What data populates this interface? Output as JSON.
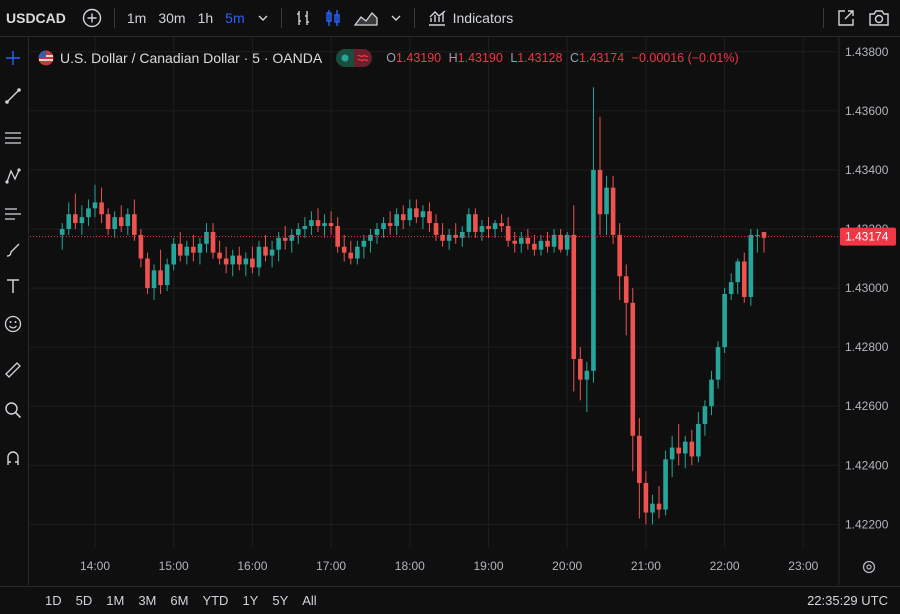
{
  "toolbar": {
    "symbol": "USDCAD",
    "intervals": [
      "1m",
      "30m",
      "1h",
      "5m"
    ],
    "active_interval": "5m",
    "indicators_label": "Indicators",
    "icons": [
      "plus-circle-icon",
      "chevron-down-icon",
      "bar-style-icon",
      "candle-style-icon",
      "area-style-icon",
      "indicators-icon",
      "fullscreen-icon",
      "camera-icon"
    ]
  },
  "legend": {
    "title": "U.S. Dollar / Canadian Dollar · 5 · OANDA",
    "open_label": "O",
    "open": "1.43190",
    "high_label": "H",
    "high": "1.43190",
    "low_label": "L",
    "low": "1.43128",
    "close_label": "C",
    "close": "1.43174",
    "change": "−0.00016 (−0.01%)"
  },
  "price_axis": {
    "ticks": [
      "1.43800",
      "1.43600",
      "1.43400",
      "1.43200",
      "1.43000",
      "1.42800",
      "1.42600",
      "1.42400",
      "1.42200"
    ],
    "last_price": "1.43174"
  },
  "time_axis": {
    "ticks": [
      "14:00",
      "15:00",
      "16:00",
      "17:00",
      "18:00",
      "19:00",
      "20:00",
      "21:00",
      "22:00",
      "23:00"
    ]
  },
  "bottom": {
    "ranges": [
      "1D",
      "5D",
      "1M",
      "3M",
      "6M",
      "YTD",
      "1Y",
      "5Y",
      "All"
    ],
    "clock": "22:35:29 UTC"
  },
  "colors": {
    "up": "#26a69a",
    "down": "#ef5350",
    "last_price_bg": "#f23645",
    "background": "#0f0f0f"
  },
  "chart_data": {
    "type": "candlestick",
    "y_range": [
      1.4212,
      1.4385
    ],
    "interval_minutes": 5,
    "candles": [
      {
        "t": "13:35",
        "o": 1.4318,
        "h": 1.4322,
        "l": 1.4313,
        "c": 1.432
      },
      {
        "t": "13:40",
        "o": 1.432,
        "h": 1.4329,
        "l": 1.4318,
        "c": 1.4325
      },
      {
        "t": "13:45",
        "o": 1.4325,
        "h": 1.4332,
        "l": 1.432,
        "c": 1.4322
      },
      {
        "t": "13:50",
        "o": 1.4322,
        "h": 1.4328,
        "l": 1.4318,
        "c": 1.4324
      },
      {
        "t": "13:55",
        "o": 1.4324,
        "h": 1.433,
        "l": 1.4321,
        "c": 1.4327
      },
      {
        "t": "14:00",
        "o": 1.4327,
        "h": 1.4335,
        "l": 1.4324,
        "c": 1.4329
      },
      {
        "t": "14:05",
        "o": 1.4329,
        "h": 1.4334,
        "l": 1.4322,
        "c": 1.4325
      },
      {
        "t": "14:10",
        "o": 1.4325,
        "h": 1.4327,
        "l": 1.4318,
        "c": 1.432
      },
      {
        "t": "14:15",
        "o": 1.432,
        "h": 1.4326,
        "l": 1.4317,
        "c": 1.4324
      },
      {
        "t": "14:20",
        "o": 1.4324,
        "h": 1.4328,
        "l": 1.4319,
        "c": 1.4321
      },
      {
        "t": "14:25",
        "o": 1.4321,
        "h": 1.4327,
        "l": 1.4318,
        "c": 1.4325
      },
      {
        "t": "14:30",
        "o": 1.4325,
        "h": 1.433,
        "l": 1.4316,
        "c": 1.4318
      },
      {
        "t": "14:35",
        "o": 1.4318,
        "h": 1.432,
        "l": 1.4307,
        "c": 1.431
      },
      {
        "t": "14:40",
        "o": 1.431,
        "h": 1.4312,
        "l": 1.4298,
        "c": 1.43
      },
      {
        "t": "14:45",
        "o": 1.43,
        "h": 1.4308,
        "l": 1.4296,
        "c": 1.4306
      },
      {
        "t": "14:50",
        "o": 1.4306,
        "h": 1.4313,
        "l": 1.4298,
        "c": 1.4301
      },
      {
        "t": "14:55",
        "o": 1.4301,
        "h": 1.431,
        "l": 1.4299,
        "c": 1.4308
      },
      {
        "t": "15:00",
        "o": 1.4308,
        "h": 1.4317,
        "l": 1.4306,
        "c": 1.4315
      },
      {
        "t": "15:05",
        "o": 1.4315,
        "h": 1.4319,
        "l": 1.4309,
        "c": 1.4311
      },
      {
        "t": "15:10",
        "o": 1.4311,
        "h": 1.4316,
        "l": 1.4308,
        "c": 1.4314
      },
      {
        "t": "15:15",
        "o": 1.4314,
        "h": 1.4318,
        "l": 1.4309,
        "c": 1.4312
      },
      {
        "t": "15:20",
        "o": 1.4312,
        "h": 1.4317,
        "l": 1.4308,
        "c": 1.4315
      },
      {
        "t": "15:25",
        "o": 1.4315,
        "h": 1.4322,
        "l": 1.4312,
        "c": 1.4319
      },
      {
        "t": "15:30",
        "o": 1.4319,
        "h": 1.4322,
        "l": 1.431,
        "c": 1.4312
      },
      {
        "t": "15:35",
        "o": 1.4312,
        "h": 1.4316,
        "l": 1.4308,
        "c": 1.431
      },
      {
        "t": "15:40",
        "o": 1.431,
        "h": 1.4314,
        "l": 1.4305,
        "c": 1.4308
      },
      {
        "t": "15:45",
        "o": 1.4308,
        "h": 1.4313,
        "l": 1.4304,
        "c": 1.4311
      },
      {
        "t": "15:50",
        "o": 1.4311,
        "h": 1.4314,
        "l": 1.4306,
        "c": 1.4308
      },
      {
        "t": "15:55",
        "o": 1.4308,
        "h": 1.4312,
        "l": 1.4304,
        "c": 1.431
      },
      {
        "t": "16:00",
        "o": 1.431,
        "h": 1.4314,
        "l": 1.4305,
        "c": 1.4307
      },
      {
        "t": "16:05",
        "o": 1.4307,
        "h": 1.4316,
        "l": 1.4304,
        "c": 1.4314
      },
      {
        "t": "16:10",
        "o": 1.4314,
        "h": 1.4318,
        "l": 1.4309,
        "c": 1.4311
      },
      {
        "t": "16:15",
        "o": 1.4311,
        "h": 1.4316,
        "l": 1.4307,
        "c": 1.4313
      },
      {
        "t": "16:20",
        "o": 1.4313,
        "h": 1.4319,
        "l": 1.4309,
        "c": 1.4317
      },
      {
        "t": "16:25",
        "o": 1.4317,
        "h": 1.4321,
        "l": 1.4313,
        "c": 1.4316
      },
      {
        "t": "16:30",
        "o": 1.4316,
        "h": 1.432,
        "l": 1.4312,
        "c": 1.4318
      },
      {
        "t": "16:35",
        "o": 1.4318,
        "h": 1.4322,
        "l": 1.4315,
        "c": 1.432
      },
      {
        "t": "16:40",
        "o": 1.432,
        "h": 1.4324,
        "l": 1.4317,
        "c": 1.4321
      },
      {
        "t": "16:45",
        "o": 1.4321,
        "h": 1.4326,
        "l": 1.4318,
        "c": 1.4323
      },
      {
        "t": "16:50",
        "o": 1.4323,
        "h": 1.4327,
        "l": 1.4319,
        "c": 1.4321
      },
      {
        "t": "16:55",
        "o": 1.4321,
        "h": 1.4325,
        "l": 1.4317,
        "c": 1.4322
      },
      {
        "t": "17:00",
        "o": 1.4322,
        "h": 1.4326,
        "l": 1.4318,
        "c": 1.4321
      },
      {
        "t": "17:05",
        "o": 1.4321,
        "h": 1.4324,
        "l": 1.4312,
        "c": 1.4314
      },
      {
        "t": "17:10",
        "o": 1.4314,
        "h": 1.4318,
        "l": 1.4309,
        "c": 1.4312
      },
      {
        "t": "17:15",
        "o": 1.4312,
        "h": 1.4316,
        "l": 1.4308,
        "c": 1.431
      },
      {
        "t": "17:20",
        "o": 1.431,
        "h": 1.4316,
        "l": 1.4308,
        "c": 1.4314
      },
      {
        "t": "17:25",
        "o": 1.4314,
        "h": 1.4318,
        "l": 1.431,
        "c": 1.4316
      },
      {
        "t": "17:30",
        "o": 1.4316,
        "h": 1.432,
        "l": 1.4312,
        "c": 1.4318
      },
      {
        "t": "17:35",
        "o": 1.4318,
        "h": 1.4322,
        "l": 1.4315,
        "c": 1.432
      },
      {
        "t": "17:40",
        "o": 1.432,
        "h": 1.4324,
        "l": 1.4317,
        "c": 1.4322
      },
      {
        "t": "17:45",
        "o": 1.4322,
        "h": 1.4326,
        "l": 1.4318,
        "c": 1.4321
      },
      {
        "t": "17:50",
        "o": 1.4321,
        "h": 1.4327,
        "l": 1.4318,
        "c": 1.4325
      },
      {
        "t": "17:55",
        "o": 1.4325,
        "h": 1.4328,
        "l": 1.432,
        "c": 1.4323
      },
      {
        "t": "18:00",
        "o": 1.4323,
        "h": 1.433,
        "l": 1.4321,
        "c": 1.4327
      },
      {
        "t": "18:05",
        "o": 1.4327,
        "h": 1.433,
        "l": 1.4322,
        "c": 1.4324
      },
      {
        "t": "18:10",
        "o": 1.4324,
        "h": 1.4328,
        "l": 1.432,
        "c": 1.4326
      },
      {
        "t": "18:15",
        "o": 1.4326,
        "h": 1.4329,
        "l": 1.4319,
        "c": 1.4322
      },
      {
        "t": "18:20",
        "o": 1.4322,
        "h": 1.4325,
        "l": 1.4316,
        "c": 1.4318
      },
      {
        "t": "18:25",
        "o": 1.4318,
        "h": 1.4322,
        "l": 1.4314,
        "c": 1.4316
      },
      {
        "t": "18:30",
        "o": 1.4316,
        "h": 1.432,
        "l": 1.4313,
        "c": 1.4318
      },
      {
        "t": "18:35",
        "o": 1.4318,
        "h": 1.4322,
        "l": 1.4315,
        "c": 1.4317
      },
      {
        "t": "18:40",
        "o": 1.4317,
        "h": 1.4321,
        "l": 1.4314,
        "c": 1.4319
      },
      {
        "t": "18:45",
        "o": 1.4319,
        "h": 1.4327,
        "l": 1.4317,
        "c": 1.4325
      },
      {
        "t": "18:50",
        "o": 1.4325,
        "h": 1.4327,
        "l": 1.4317,
        "c": 1.4319
      },
      {
        "t": "18:55",
        "o": 1.4319,
        "h": 1.4323,
        "l": 1.4316,
        "c": 1.4321
      },
      {
        "t": "19:00",
        "o": 1.4321,
        "h": 1.4324,
        "l": 1.4317,
        "c": 1.432
      },
      {
        "t": "19:05",
        "o": 1.432,
        "h": 1.4323,
        "l": 1.4317,
        "c": 1.4322
      },
      {
        "t": "19:10",
        "o": 1.4322,
        "h": 1.4325,
        "l": 1.4319,
        "c": 1.4321
      },
      {
        "t": "19:15",
        "o": 1.4321,
        "h": 1.4324,
        "l": 1.4314,
        "c": 1.4316
      },
      {
        "t": "19:20",
        "o": 1.4316,
        "h": 1.4319,
        "l": 1.4312,
        "c": 1.4315
      },
      {
        "t": "19:25",
        "o": 1.4315,
        "h": 1.4319,
        "l": 1.4312,
        "c": 1.4317
      },
      {
        "t": "19:30",
        "o": 1.4317,
        "h": 1.432,
        "l": 1.4313,
        "c": 1.4315
      },
      {
        "t": "19:35",
        "o": 1.4315,
        "h": 1.4318,
        "l": 1.4311,
        "c": 1.4313
      },
      {
        "t": "19:40",
        "o": 1.4313,
        "h": 1.4318,
        "l": 1.4311,
        "c": 1.4316
      },
      {
        "t": "19:45",
        "o": 1.4316,
        "h": 1.4319,
        "l": 1.4312,
        "c": 1.4314
      },
      {
        "t": "19:50",
        "o": 1.4314,
        "h": 1.432,
        "l": 1.4312,
        "c": 1.4318
      },
      {
        "t": "19:55",
        "o": 1.4318,
        "h": 1.432,
        "l": 1.4312,
        "c": 1.4313
      },
      {
        "t": "20:00",
        "o": 1.4313,
        "h": 1.4319,
        "l": 1.4311,
        "c": 1.4318
      },
      {
        "t": "20:05",
        "o": 1.4318,
        "h": 1.4328,
        "l": 1.4265,
        "c": 1.4276
      },
      {
        "t": "20:10",
        "o": 1.4276,
        "h": 1.428,
        "l": 1.4262,
        "c": 1.4269
      },
      {
        "t": "20:15",
        "o": 1.4269,
        "h": 1.4275,
        "l": 1.4258,
        "c": 1.4272
      },
      {
        "t": "20:20",
        "o": 1.4272,
        "h": 1.4368,
        "l": 1.4268,
        "c": 1.434
      },
      {
        "t": "20:25",
        "o": 1.434,
        "h": 1.4358,
        "l": 1.4318,
        "c": 1.4325
      },
      {
        "t": "20:30",
        "o": 1.4325,
        "h": 1.4338,
        "l": 1.4318,
        "c": 1.4334
      },
      {
        "t": "20:35",
        "o": 1.4334,
        "h": 1.4338,
        "l": 1.4315,
        "c": 1.4318
      },
      {
        "t": "20:40",
        "o": 1.4318,
        "h": 1.4322,
        "l": 1.4296,
        "c": 1.4304
      },
      {
        "t": "20:45",
        "o": 1.4304,
        "h": 1.4308,
        "l": 1.4284,
        "c": 1.4295
      },
      {
        "t": "20:50",
        "o": 1.4295,
        "h": 1.43,
        "l": 1.4238,
        "c": 1.425
      },
      {
        "t": "20:55",
        "o": 1.425,
        "h": 1.4256,
        "l": 1.4222,
        "c": 1.4234
      },
      {
        "t": "21:00",
        "o": 1.4234,
        "h": 1.4238,
        "l": 1.422,
        "c": 1.4224
      },
      {
        "t": "21:05",
        "o": 1.4224,
        "h": 1.423,
        "l": 1.422,
        "c": 1.4227
      },
      {
        "t": "21:10",
        "o": 1.4227,
        "h": 1.4233,
        "l": 1.4222,
        "c": 1.4225
      },
      {
        "t": "21:15",
        "o": 1.4225,
        "h": 1.4245,
        "l": 1.4223,
        "c": 1.4242
      },
      {
        "t": "21:20",
        "o": 1.4242,
        "h": 1.425,
        "l": 1.4236,
        "c": 1.4246
      },
      {
        "t": "21:25",
        "o": 1.4246,
        "h": 1.4254,
        "l": 1.424,
        "c": 1.4244
      },
      {
        "t": "21:30",
        "o": 1.4244,
        "h": 1.425,
        "l": 1.4239,
        "c": 1.4248
      },
      {
        "t": "21:35",
        "o": 1.4248,
        "h": 1.4252,
        "l": 1.424,
        "c": 1.4243
      },
      {
        "t": "21:40",
        "o": 1.4243,
        "h": 1.4258,
        "l": 1.4241,
        "c": 1.4254
      },
      {
        "t": "21:45",
        "o": 1.4254,
        "h": 1.4262,
        "l": 1.425,
        "c": 1.426
      },
      {
        "t": "21:50",
        "o": 1.426,
        "h": 1.4272,
        "l": 1.4257,
        "c": 1.4269
      },
      {
        "t": "21:55",
        "o": 1.4269,
        "h": 1.4282,
        "l": 1.4266,
        "c": 1.428
      },
      {
        "t": "22:00",
        "o": 1.428,
        "h": 1.43,
        "l": 1.4278,
        "c": 1.4298
      },
      {
        "t": "22:05",
        "o": 1.4298,
        "h": 1.4305,
        "l": 1.4296,
        "c": 1.4302
      },
      {
        "t": "22:10",
        "o": 1.4302,
        "h": 1.431,
        "l": 1.4298,
        "c": 1.4309
      },
      {
        "t": "22:15",
        "o": 1.4309,
        "h": 1.4312,
        "l": 1.4295,
        "c": 1.4297
      },
      {
        "t": "22:20",
        "o": 1.4297,
        "h": 1.432,
        "l": 1.4294,
        "c": 1.4318
      },
      {
        "t": "22:25",
        "o": 1.4318,
        "h": 1.432,
        "l": 1.4312,
        "c": 1.4318
      },
      {
        "t": "22:30",
        "o": 1.4319,
        "h": 1.4319,
        "l": 1.4312,
        "c": 1.4317
      }
    ]
  }
}
